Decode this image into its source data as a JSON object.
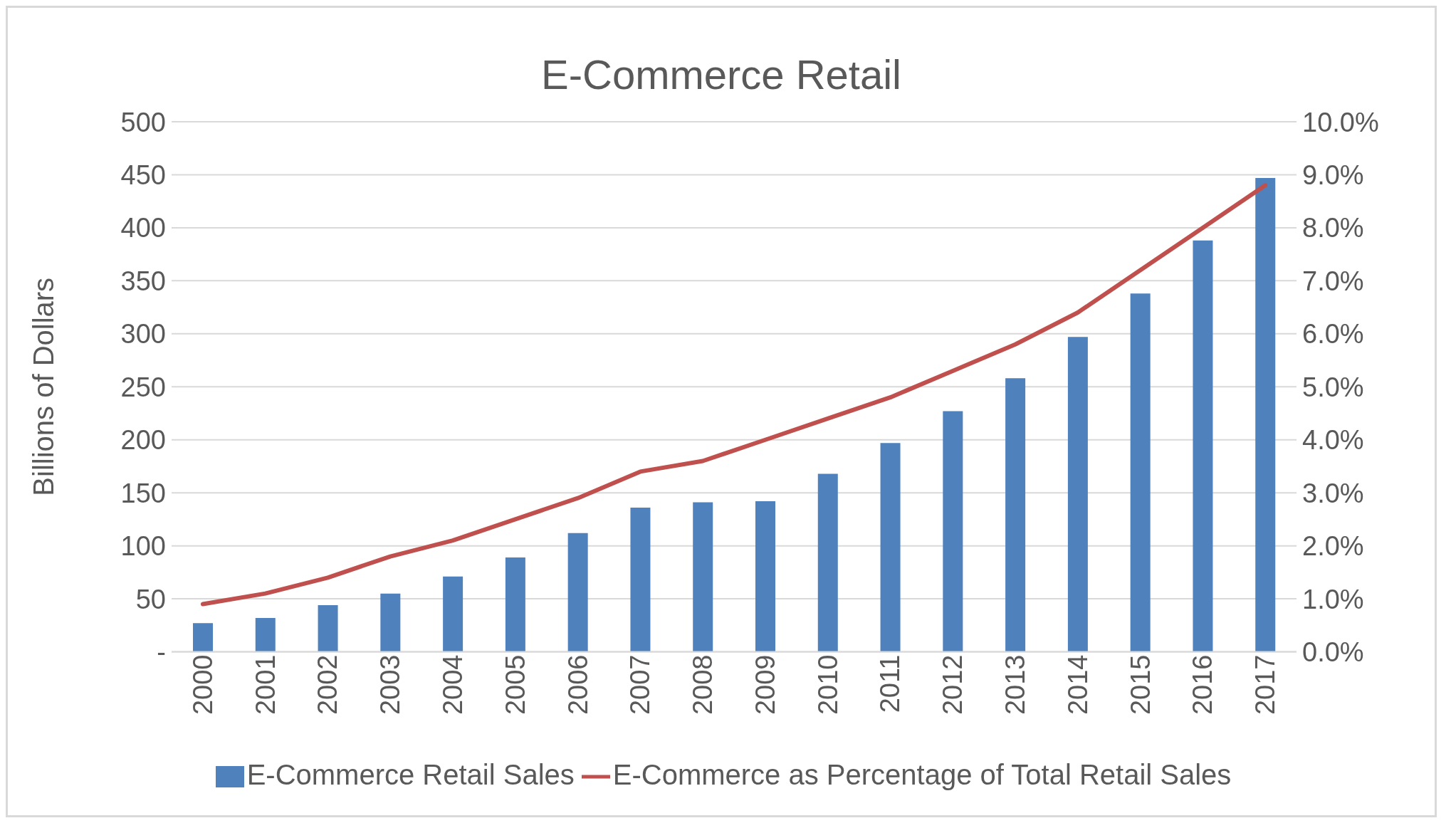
{
  "chart_data": {
    "type": "bar",
    "title": "E-Commerce Retail",
    "ylabel": "Billions of Dollars",
    "categories": [
      "2000",
      "2001",
      "2002",
      "2003",
      "2004",
      "2005",
      "2006",
      "2007",
      "2008",
      "2009",
      "2010",
      "2011",
      "2012",
      "2013",
      "2014",
      "2015",
      "2016",
      "2017"
    ],
    "series": [
      {
        "name": "E-Commerce Retail Sales",
        "color": "#4f81bd",
        "values": [
          27,
          32,
          44,
          55,
          71,
          89,
          112,
          136,
          141,
          142,
          168,
          197,
          227,
          258,
          297,
          338,
          388,
          447
        ]
      },
      {
        "name": "E-Commerce as Percentage of Total Retail Sales",
        "type": "line",
        "axis": "y2",
        "color": "#c0504d",
        "values": [
          0.9,
          1.1,
          1.4,
          1.8,
          2.1,
          2.5,
          2.9,
          3.4,
          3.6,
          4.0,
          4.4,
          4.8,
          5.3,
          5.8,
          6.4,
          7.2,
          8.0,
          8.8
        ]
      }
    ],
    "ylim": [
      0,
      500
    ],
    "yticks": [
      {
        "value": 0,
        "label": "-"
      },
      50,
      100,
      150,
      200,
      250,
      300,
      350,
      400,
      450,
      500
    ],
    "y2lim": [
      0,
      10
    ],
    "y2ticks": [
      {
        "value": 0,
        "label": "0.0%"
      },
      {
        "value": 1,
        "label": "1.0%"
      },
      {
        "value": 2,
        "label": "2.0%"
      },
      {
        "value": 3,
        "label": "3.0%"
      },
      {
        "value": 4,
        "label": "4.0%"
      },
      {
        "value": 5,
        "label": "5.0%"
      },
      {
        "value": 6,
        "label": "6.0%"
      },
      {
        "value": 7,
        "label": "7.0%"
      },
      {
        "value": 8,
        "label": "8.0%"
      },
      {
        "value": 9,
        "label": "9.0%"
      },
      {
        "value": 10,
        "label": "10.0%"
      }
    ],
    "grid": "y",
    "legend": "bottom",
    "marker": "none",
    "line_style": "solid"
  }
}
